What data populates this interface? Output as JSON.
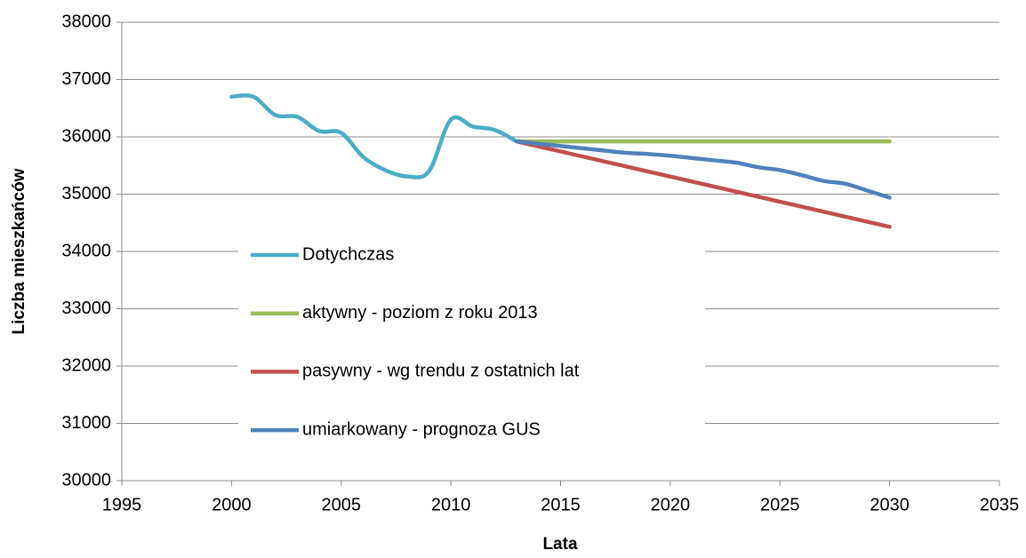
{
  "chart_data": {
    "type": "line",
    "xlabel": "Lata",
    "ylabel": "Liczba mieszkańców",
    "xlim": [
      1995,
      2035
    ],
    "xticks": [
      1995,
      2000,
      2005,
      2010,
      2015,
      2020,
      2025,
      2030,
      2035
    ],
    "ylim": [
      30000,
      38000
    ],
    "yticks": [
      30000,
      31000,
      32000,
      33000,
      34000,
      35000,
      36000,
      37000,
      38000
    ],
    "grid": true,
    "legend": "center",
    "series": [
      {
        "name": "Dotychczas",
        "color": "#4bacc6",
        "x": [
          2000,
          2001,
          2002,
          2003,
          2004,
          2005,
          2006,
          2007,
          2008,
          2009,
          2010,
          2011,
          2012,
          2013
        ],
        "values": [
          36700,
          36700,
          36380,
          36350,
          36100,
          36070,
          35650,
          35420,
          35310,
          35400,
          36300,
          36180,
          36120,
          35920
        ]
      },
      {
        "name": "aktywny - poziom z roku 2013",
        "color": "#9bbb59",
        "x": [
          2013,
          2030
        ],
        "values": [
          35920,
          35920
        ]
      },
      {
        "name": "pasywny - wg trendu z ostatnich lat",
        "color": "#c0504d",
        "x": [
          2013,
          2030
        ],
        "values": [
          35920,
          34430
        ]
      },
      {
        "name": "umiarkowany - prognoza GUS",
        "color": "#4f81bd",
        "x": [
          2013,
          2014,
          2015,
          2016,
          2017,
          2018,
          2019,
          2020,
          2021,
          2022,
          2023,
          2024,
          2025,
          2026,
          2027,
          2028,
          2029,
          2030
        ],
        "values": [
          35920,
          35880,
          35840,
          35800,
          35760,
          35720,
          35700,
          35670,
          35630,
          35590,
          35550,
          35470,
          35420,
          35330,
          35230,
          35180,
          35060,
          34940
        ]
      }
    ]
  }
}
